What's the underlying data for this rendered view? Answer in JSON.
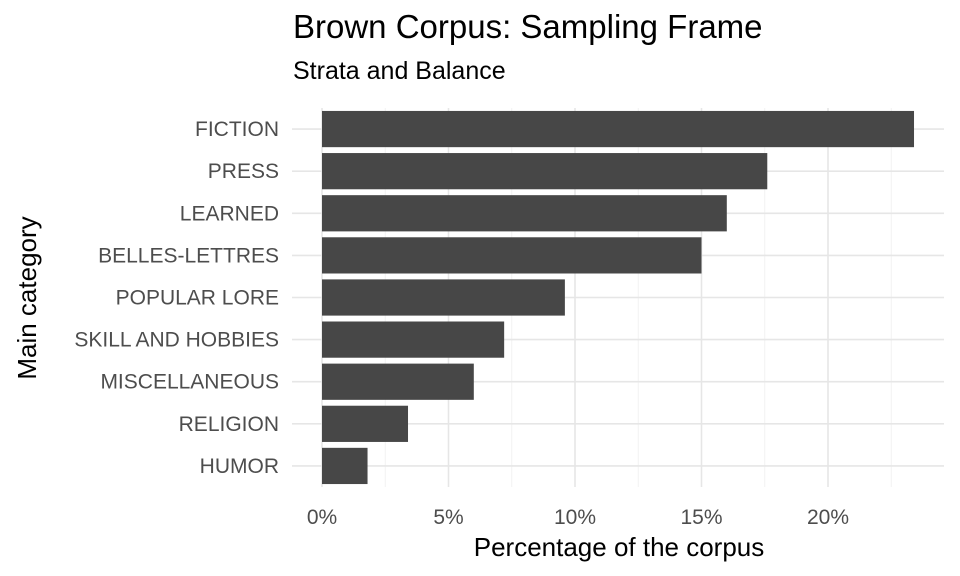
{
  "chart_data": {
    "type": "bar",
    "orientation": "horizontal",
    "title": "Brown Corpus: Sampling Frame",
    "subtitle": "Strata and Balance",
    "xlabel": "Percentage of the corpus",
    "ylabel": "Main category",
    "categories": [
      "FICTION",
      "PRESS",
      "LEARNED",
      "BELLES-LETTRES",
      "POPULAR LORE",
      "SKILL AND HOBBIES",
      "MISCELLANEOUS",
      "RELIGION",
      "HUMOR"
    ],
    "values": [
      23.4,
      17.6,
      16.0,
      15.0,
      9.6,
      7.2,
      6.0,
      3.4,
      1.8
    ],
    "xlim": [
      0,
      24.4
    ],
    "x_ticks": [
      0,
      5,
      10,
      15,
      20
    ],
    "x_tick_labels": [
      "0%",
      "5%",
      "10%",
      "15%",
      "20%"
    ],
    "grid": true,
    "colors": {
      "bar": "#474747",
      "grid_major": "#e6e6e6",
      "grid_minor": "#f2f2f2"
    }
  }
}
